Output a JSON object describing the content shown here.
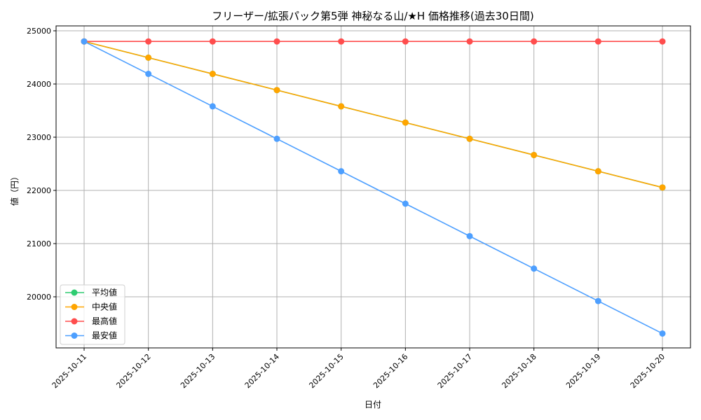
{
  "chart_data": {
    "type": "line",
    "title": "フリーザー/拡張パック第5弾 神秘なる山/★H 価格推移(過去30日間)",
    "xlabel": "日付",
    "ylabel": "値（円）",
    "x": [
      "2025-10-11",
      "2025-10-12",
      "2025-10-13",
      "2025-10-14",
      "2025-10-15",
      "2025-10-16",
      "2025-10-17",
      "2025-10-18",
      "2025-10-19",
      "2025-10-20"
    ],
    "yticks": [
      20000,
      21000,
      22000,
      23000,
      24000,
      25000
    ],
    "ylim": [
      19000,
      25200
    ],
    "grid": true,
    "legend": "lower-left",
    "series": [
      {
        "name": "平均値",
        "color": "#2ecc71",
        "values": [
          24800,
          24495,
          24190,
          23885,
          23580,
          23275,
          22970,
          22665,
          22360,
          22055
        ]
      },
      {
        "name": "中央値",
        "color": "#ffa500",
        "values": [
          24800,
          24495,
          24190,
          23885,
          23580,
          23275,
          22970,
          22665,
          22360,
          22055
        ]
      },
      {
        "name": "最高値",
        "color": "#ff4d4d",
        "values": [
          24800,
          24800,
          24800,
          24800,
          24800,
          24800,
          24800,
          24800,
          24800,
          24800
        ]
      },
      {
        "name": "最安値",
        "color": "#4d9fff",
        "values": [
          24800,
          24190,
          23580,
          22970,
          22360,
          21750,
          21140,
          20530,
          19920,
          19310
        ]
      }
    ]
  }
}
